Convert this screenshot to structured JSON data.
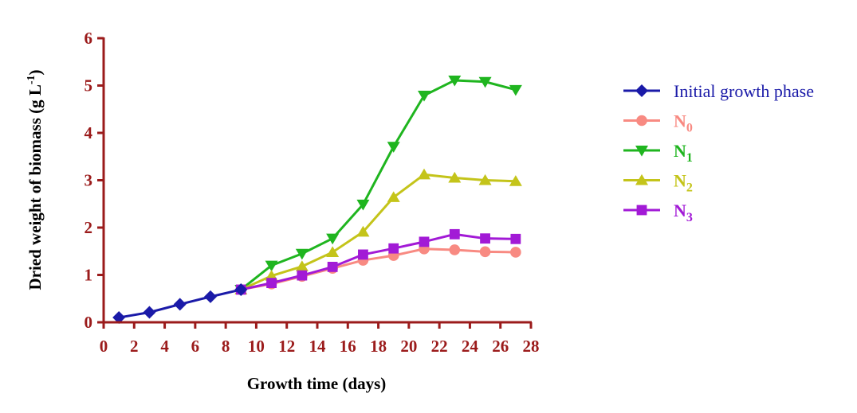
{
  "chart_data": {
    "type": "line",
    "xlabel": "Growth time (days)",
    "ylabel_main": "Dried weight of biomass (g L",
    "ylabel_sup": "-1",
    "ylabel_end": ")",
    "xlim": [
      0,
      28
    ],
    "ylim": [
      0,
      6
    ],
    "xticks": [
      0,
      2,
      4,
      6,
      8,
      10,
      12,
      14,
      16,
      18,
      20,
      22,
      24,
      26,
      28
    ],
    "yticks": [
      0,
      1,
      2,
      3,
      4,
      5,
      6
    ],
    "grid": false,
    "legend_position": "right",
    "axis_color": "#9b1b1b",
    "series": [
      {
        "name": "Initial growth phase",
        "legend_base": "Initial growth phase",
        "legend_sub": "",
        "color": "#1a1aa8",
        "marker": "diamond",
        "x": [
          1,
          3,
          5,
          7,
          9
        ],
        "y": [
          0.1,
          0.21,
          0.38,
          0.54,
          0.69
        ]
      },
      {
        "name": "N0",
        "legend_base": "N",
        "legend_sub": "0",
        "color": "#f88a82",
        "marker": "circle",
        "x": [
          9,
          11,
          13,
          15,
          17,
          19,
          21,
          23,
          25,
          27
        ],
        "y": [
          0.69,
          0.81,
          0.97,
          1.14,
          1.31,
          1.41,
          1.55,
          1.53,
          1.49,
          1.48
        ]
      },
      {
        "name": "N1",
        "legend_base": "N",
        "legend_sub": "1",
        "color": "#1fb51f",
        "marker": "triangle-down",
        "x": [
          9,
          11,
          13,
          15,
          17,
          19,
          21,
          23,
          25,
          27
        ],
        "y": [
          0.69,
          1.2,
          1.45,
          1.77,
          2.49,
          3.71,
          4.79,
          5.11,
          5.08,
          4.91
        ]
      },
      {
        "name": "N2",
        "legend_base": "N",
        "legend_sub": "2",
        "color": "#c4c41a",
        "marker": "triangle-up",
        "x": [
          9,
          11,
          13,
          15,
          17,
          19,
          21,
          23,
          25,
          27
        ],
        "y": [
          0.69,
          0.98,
          1.18,
          1.48,
          1.91,
          2.64,
          3.12,
          3.05,
          3.0,
          2.98
        ]
      },
      {
        "name": "N3",
        "legend_base": "N",
        "legend_sub": "3",
        "color": "#a21ad6",
        "marker": "square",
        "x": [
          9,
          11,
          13,
          15,
          17,
          19,
          21,
          23,
          25,
          27
        ],
        "y": [
          0.69,
          0.83,
          0.99,
          1.17,
          1.43,
          1.56,
          1.7,
          1.86,
          1.77,
          1.76
        ]
      }
    ]
  }
}
